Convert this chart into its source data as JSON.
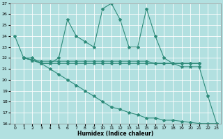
{
  "xlabel": "Humidex (Indice chaleur)",
  "background_color": "#b2e0e0",
  "line_color": "#2e8b7a",
  "grid_color": "#ffffff",
  "xlim": [
    -0.5,
    23.5
  ],
  "ylim": [
    16,
    27
  ],
  "xticks": [
    0,
    1,
    2,
    3,
    4,
    5,
    6,
    7,
    8,
    9,
    10,
    11,
    12,
    13,
    14,
    15,
    16,
    17,
    18,
    19,
    20,
    21,
    22,
    23
  ],
  "yticks": [
    16,
    17,
    18,
    19,
    20,
    21,
    22,
    23,
    24,
    25,
    26,
    27
  ],
  "line1_x": [
    0,
    1,
    2,
    3,
    4,
    5,
    6,
    7,
    8,
    9,
    10,
    11,
    12,
    13,
    14,
    15,
    16,
    17,
    18,
    19,
    20,
    21
  ],
  "line1_y": [
    24,
    22,
    22,
    21.5,
    21.5,
    22,
    25.5,
    24,
    23.5,
    23,
    26.5,
    27,
    25.5,
    23,
    23,
    26.5,
    24,
    22,
    21.5,
    21.5,
    21.5,
    21.5
  ],
  "line2_x": [
    1,
    2,
    3,
    4,
    5,
    6,
    7,
    8,
    9,
    10,
    11,
    12,
    13,
    14,
    15,
    16,
    17,
    18,
    19,
    20,
    21
  ],
  "line2_y": [
    22,
    21.8,
    21.7,
    21.7,
    21.7,
    21.7,
    21.7,
    21.7,
    21.7,
    21.7,
    21.7,
    21.7,
    21.7,
    21.7,
    21.7,
    21.5,
    21.5,
    21.5,
    21.5,
    21.5,
    21.5
  ],
  "line3_x": [
    1,
    2,
    3,
    4,
    5,
    6,
    7,
    8,
    9,
    10,
    11,
    12,
    13,
    14,
    15,
    16,
    17,
    18,
    19,
    20,
    21,
    22,
    23
  ],
  "line3_y": [
    22,
    21.8,
    21.5,
    21.5,
    21.5,
    21.5,
    21.5,
    21.5,
    21.5,
    21.5,
    21.5,
    21.5,
    21.5,
    21.5,
    21.5,
    21.5,
    21.5,
    21.5,
    21.2,
    21.2,
    21.2,
    18.5,
    16.0
  ],
  "line4_x": [
    1,
    2,
    3,
    4,
    5,
    6,
    7,
    8,
    9,
    10,
    11,
    12,
    13,
    14,
    15,
    16,
    17,
    18,
    19,
    20,
    21,
    22,
    23
  ],
  "line4_y": [
    22,
    21.8,
    21.5,
    21.0,
    20.5,
    20.0,
    19.5,
    19.0,
    18.5,
    18.0,
    17.5,
    17.3,
    17.0,
    16.8,
    16.5,
    16.5,
    16.3,
    16.3,
    16.2,
    16.1,
    16.0,
    16.0,
    16.0
  ],
  "marker1": "*",
  "marker2": "D",
  "marker3": "*",
  "marker4": "*"
}
